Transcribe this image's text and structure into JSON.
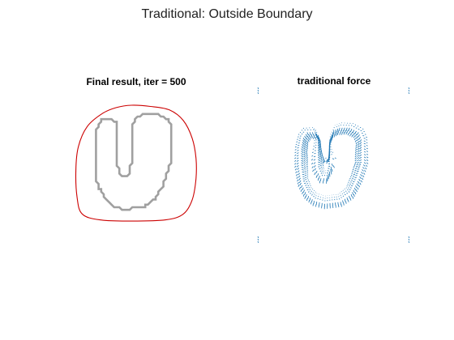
{
  "figure": {
    "title": "Traditional: Outside Boundary"
  },
  "chart_data": [
    {
      "type": "line",
      "title": "Final result,  iter = 500",
      "axes_visible": false,
      "series": [
        {
          "role": "object-shape",
          "color": "#a0a0a0",
          "points": [
            [
              0.22,
              0.12
            ],
            [
              0.3,
              0.12
            ],
            [
              0.33,
              0.15
            ],
            [
              0.33,
              0.5
            ],
            [
              0.37,
              0.6
            ],
            [
              0.42,
              0.6
            ],
            [
              0.45,
              0.5
            ],
            [
              0.45,
              0.2
            ],
            [
              0.49,
              0.1
            ],
            [
              0.55,
              0.07
            ],
            [
              0.65,
              0.07
            ],
            [
              0.74,
              0.12
            ],
            [
              0.77,
              0.2
            ],
            [
              0.77,
              0.45
            ],
            [
              0.72,
              0.62
            ],
            [
              0.65,
              0.78
            ],
            [
              0.55,
              0.86
            ],
            [
              0.4,
              0.88
            ],
            [
              0.3,
              0.85
            ],
            [
              0.23,
              0.78
            ],
            [
              0.18,
              0.66
            ],
            [
              0.16,
              0.48
            ],
            [
              0.16,
              0.3
            ],
            [
              0.18,
              0.18
            ]
          ]
        },
        {
          "role": "snake-contour",
          "color": "#cc0000",
          "points": [
            [
              0.45,
              0.0
            ],
            [
              0.6,
              0.01
            ],
            [
              0.75,
              0.04
            ],
            [
              0.86,
              0.13
            ],
            [
              0.93,
              0.28
            ],
            [
              0.96,
              0.45
            ],
            [
              0.96,
              0.62
            ],
            [
              0.93,
              0.8
            ],
            [
              0.86,
              0.92
            ],
            [
              0.72,
              0.97
            ],
            [
              0.45,
              0.98
            ],
            [
              0.2,
              0.97
            ],
            [
              0.06,
              0.92
            ],
            [
              0.02,
              0.78
            ],
            [
              0.01,
              0.55
            ],
            [
              0.03,
              0.35
            ],
            [
              0.1,
              0.18
            ],
            [
              0.22,
              0.07
            ],
            [
              0.33,
              0.02
            ]
          ]
        }
      ]
    },
    {
      "type": "quiver",
      "title": "traditional force",
      "axes_visible": false,
      "color": "#1f77b4"
    }
  ]
}
